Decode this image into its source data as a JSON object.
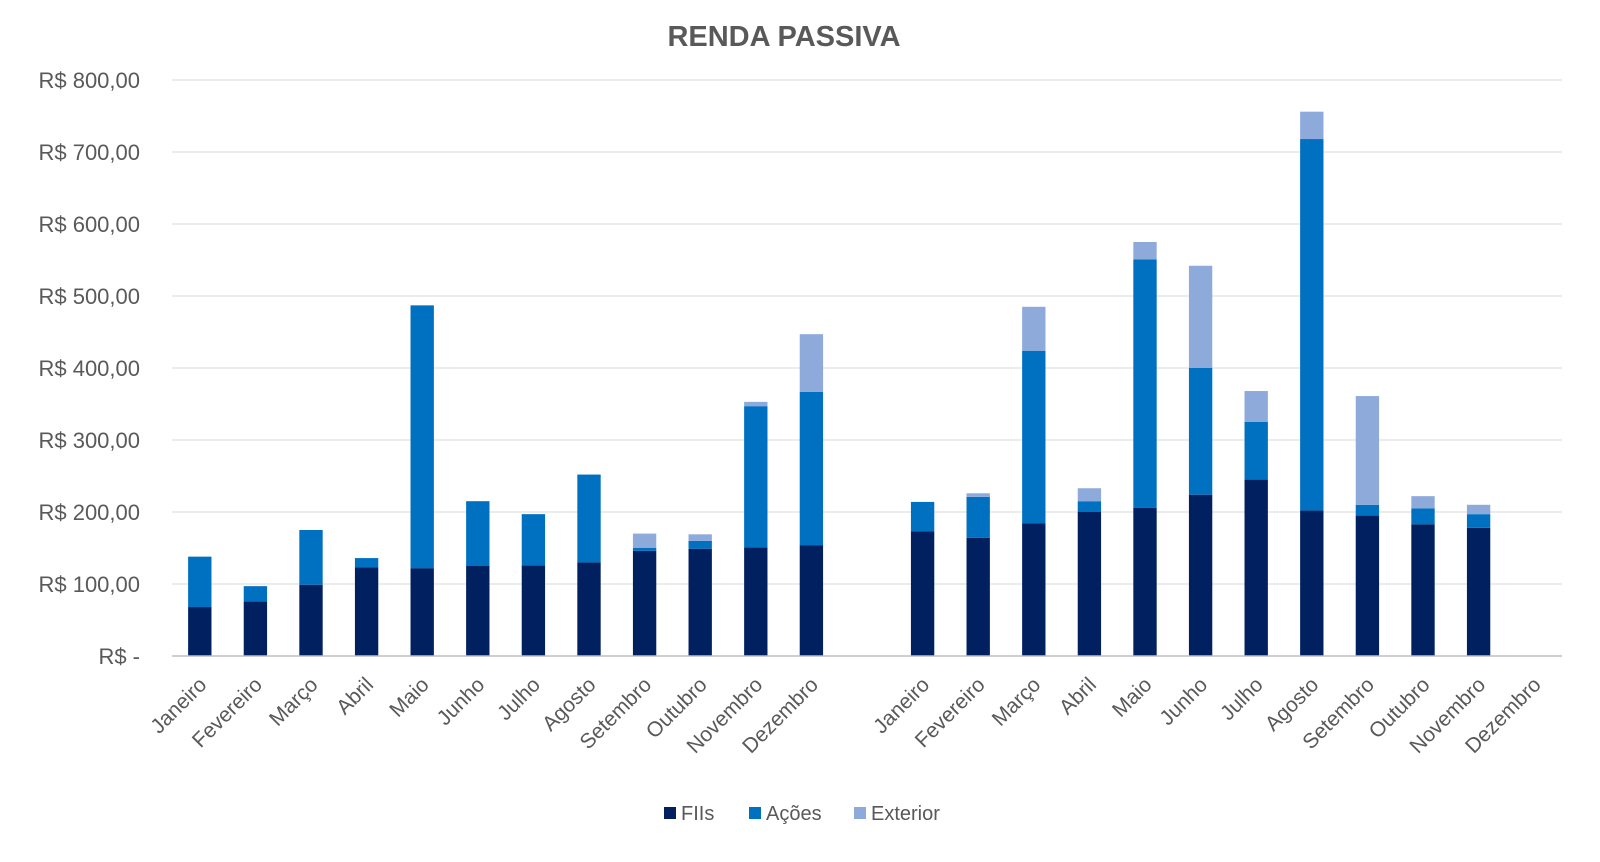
{
  "chart_data": {
    "type": "bar",
    "stacked": true,
    "title": "RENDA PASSIVA",
    "xlabel": "",
    "ylabel": "",
    "ylim": [
      0,
      800
    ],
    "yticks": [
      0,
      100,
      200,
      300,
      400,
      500,
      600,
      700,
      800
    ],
    "ytick_labels": [
      "R$ -",
      "R$ 100,00",
      "R$ 200,00",
      "R$ 300,00",
      "R$ 400,00",
      "R$ 500,00",
      "R$ 600,00",
      "R$ 700,00",
      "R$ 800,00"
    ],
    "grid": true,
    "legend_position": "bottom",
    "groups": [
      {
        "categories": [
          "Janeiro",
          "Fevereiro",
          "Março",
          "Abril",
          "Maio",
          "Junho",
          "Julho",
          "Agosto",
          "Setembro",
          "Outubro",
          "Novembro",
          "Dezembro"
        ],
        "series": [
          {
            "name": "FIIs",
            "values": [
              68,
              76,
              99,
              123,
              122,
              125,
              126,
              130,
              146,
              149,
              151,
              154
            ]
          },
          {
            "name": "Ações",
            "values": [
              70,
              21,
              76,
              13,
              365,
              90,
              71,
              122,
              4,
              11,
              196,
              213
            ]
          },
          {
            "name": "Exterior",
            "values": [
              0,
              0,
              0,
              0,
              0,
              0,
              0,
              0,
              20,
              9,
              6,
              80
            ]
          }
        ]
      },
      {
        "categories": [
          "Janeiro",
          "Fevereiro",
          "Março",
          "Abril",
          "Maio",
          "Junho",
          "Julho",
          "Agosto",
          "Setembro",
          "Outubro",
          "Novembro",
          "Dezembro"
        ],
        "series": [
          {
            "name": "FIIs",
            "values": [
              173,
              164,
              184,
              200,
              206,
              224,
              245,
              202,
              195,
              183,
              178,
              0
            ]
          },
          {
            "name": "Ações",
            "values": [
              41,
              57,
              240,
              15,
              345,
              176,
              80,
              516,
              15,
              22,
              19,
              0
            ]
          },
          {
            "name": "Exterior",
            "values": [
              0,
              5,
              61,
              18,
              24,
              142,
              43,
              38,
              151,
              17,
              13,
              0
            ]
          }
        ]
      }
    ],
    "colors": {
      "FIIs": "#002060",
      "Ações": "#0070c0",
      "Exterior": "#8eaadb"
    }
  }
}
